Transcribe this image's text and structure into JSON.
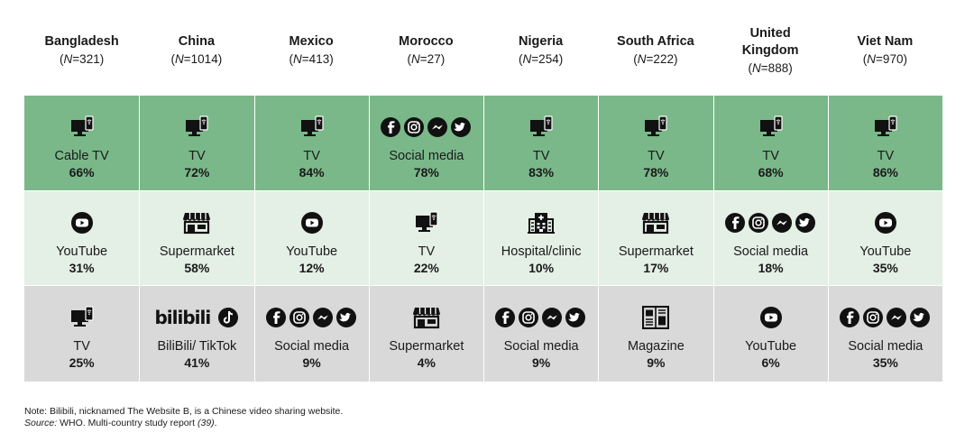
{
  "chart_data": {
    "type": "table",
    "title": "",
    "columns": [
      {
        "country": "Bangladesh",
        "n_prefix": "(",
        "n_symbol": "N",
        "n_value": "=321)"
      },
      {
        "country": "China",
        "n_prefix": "(",
        "n_symbol": "N",
        "n_value": "=1014)"
      },
      {
        "country": "Mexico",
        "n_prefix": "(",
        "n_symbol": "N",
        "n_value": "=413)"
      },
      {
        "country": "Morocco",
        "n_prefix": "(",
        "n_symbol": "N",
        "n_value": "=27)"
      },
      {
        "country": "Nigeria",
        "n_prefix": "(",
        "n_symbol": "N",
        "n_value": "=254)"
      },
      {
        "country": "South Africa",
        "n_prefix": "(",
        "n_symbol": "N",
        "n_value": "=222)"
      },
      {
        "country": "United Kingdom",
        "n_prefix": "(",
        "n_symbol": "N",
        "n_value": "=888)"
      },
      {
        "country": "Viet Nam",
        "n_prefix": "(",
        "n_symbol": "N",
        "n_value": "=970)"
      }
    ],
    "rows": [
      [
        {
          "icon": "tv-icon",
          "label": "Cable TV",
          "value": "66%"
        },
        {
          "icon": "tv-icon",
          "label": "TV",
          "value": "72%"
        },
        {
          "icon": "tv-icon",
          "label": "TV",
          "value": "84%"
        },
        {
          "icon": "social-media-icons",
          "label": "Social media",
          "value": "78%"
        },
        {
          "icon": "tv-icon",
          "label": "TV",
          "value": "83%"
        },
        {
          "icon": "tv-icon",
          "label": "TV",
          "value": "78%"
        },
        {
          "icon": "tv-icon",
          "label": "TV",
          "value": "68%"
        },
        {
          "icon": "tv-icon",
          "label": "TV",
          "value": "86%"
        }
      ],
      [
        {
          "icon": "youtube-icon",
          "label": "YouTube",
          "value": "31%"
        },
        {
          "icon": "supermarket-icon",
          "label": "Supermarket",
          "value": "58%"
        },
        {
          "icon": "youtube-icon",
          "label": "YouTube",
          "value": "12%"
        },
        {
          "icon": "tv-icon",
          "label": "TV",
          "value": "22%"
        },
        {
          "icon": "hospital-icon",
          "label": "Hospital/clinic",
          "value": "10%"
        },
        {
          "icon": "supermarket-icon",
          "label": "Supermarket",
          "value": "17%"
        },
        {
          "icon": "social-media-icons",
          "label": "Social media",
          "value": "18%"
        },
        {
          "icon": "youtube-icon",
          "label": "YouTube",
          "value": "35%"
        }
      ],
      [
        {
          "icon": "tv-icon",
          "label": "TV",
          "value": "25%"
        },
        {
          "icon": "bilibili-tiktok-icons",
          "label": "BiliBili/ TikTok",
          "value": "41%",
          "logo_text": "bilibili"
        },
        {
          "icon": "social-media-icons",
          "label": "Social media",
          "value": "9%"
        },
        {
          "icon": "supermarket-icon",
          "label": "Supermarket",
          "value": "4%"
        },
        {
          "icon": "social-media-icons",
          "label": "Social media",
          "value": "9%"
        },
        {
          "icon": "magazine-icon",
          "label": "Magazine",
          "value": "9%"
        },
        {
          "icon": "youtube-icon",
          "label": "YouTube",
          "value": "6%"
        },
        {
          "icon": "social-media-icons",
          "label": "Social media",
          "value": "35%"
        }
      ]
    ],
    "row_colors": [
      "#7ab889",
      "#e4efe6",
      "#d9d9d9"
    ]
  },
  "note": {
    "text": "Note: Bilibili, nicknamed The Website B, is a Chinese video sharing website.",
    "source_label": "Source:",
    "source_text": " WHO. Multi-country study report ",
    "source_ref": "(39)",
    "source_end": "."
  }
}
